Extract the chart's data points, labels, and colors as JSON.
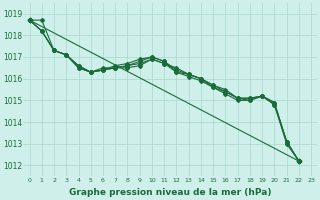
{
  "background_color": "#cff0ea",
  "grid_color": "#aad8cc",
  "line_color": "#1a6b3a",
  "xlabel": "Graphe pression niveau de la mer (hPa)",
  "xlabel_fontsize": 6.5,
  "xlim": [
    -0.5,
    23.5
  ],
  "ylim": [
    1011.5,
    1019.5
  ],
  "yticks": [
    1012,
    1013,
    1014,
    1015,
    1016,
    1017,
    1018,
    1019
  ],
  "xticks": [
    0,
    1,
    2,
    3,
    4,
    5,
    6,
    7,
    8,
    9,
    10,
    11,
    12,
    13,
    14,
    15,
    16,
    17,
    18,
    19,
    20,
    21,
    22,
    23
  ],
  "series": [
    [
      1018.7,
      1018.2,
      1017.3,
      1017.1,
      1016.6,
      1016.3,
      1016.4,
      1016.5,
      1016.5,
      1016.6,
      1016.9,
      1016.7,
      1016.5,
      1016.2,
      1016.0,
      1015.7,
      1015.5,
      1015.1,
      1015.1,
      1015.2,
      1014.9,
      1013.1,
      1012.2
    ],
    [
      1018.7,
      1018.2,
      1017.3,
      1017.1,
      1016.6,
      1016.3,
      1016.4,
      1016.5,
      1016.6,
      1016.7,
      1016.9,
      1016.7,
      1016.3,
      1016.1,
      1015.9,
      1015.6,
      1015.4,
      1015.1,
      1015.0,
      1015.2,
      1014.9,
      1013.1,
      1012.2
    ],
    [
      1018.7,
      1018.2,
      1017.3,
      1017.1,
      1016.5,
      1016.3,
      1016.5,
      1016.5,
      1016.6,
      1016.8,
      1017.0,
      1016.8,
      1016.4,
      1016.2,
      1016.0,
      1015.6,
      1015.3,
      1015.0,
      1015.0,
      1015.2,
      1014.8,
      1013.0,
      1012.2
    ],
    [
      1018.7,
      1018.7,
      1017.3,
      1017.1,
      1016.5,
      1016.3,
      1016.4,
      1016.6,
      1016.7,
      1016.9,
      1017.0,
      1016.8,
      1016.3,
      1016.2,
      1016.0,
      1015.7,
      1015.4,
      1015.1,
      1015.1,
      1015.2,
      1014.8,
      1013.1,
      1012.2
    ]
  ],
  "x_values": [
    0,
    1,
    2,
    3,
    4,
    5,
    6,
    7,
    8,
    9,
    10,
    11,
    12,
    13,
    14,
    15,
    16,
    17,
    18,
    19,
    20,
    21,
    22
  ],
  "trend_line": [
    1018.7,
    1012.2
  ],
  "trend_x": [
    0,
    22
  ]
}
